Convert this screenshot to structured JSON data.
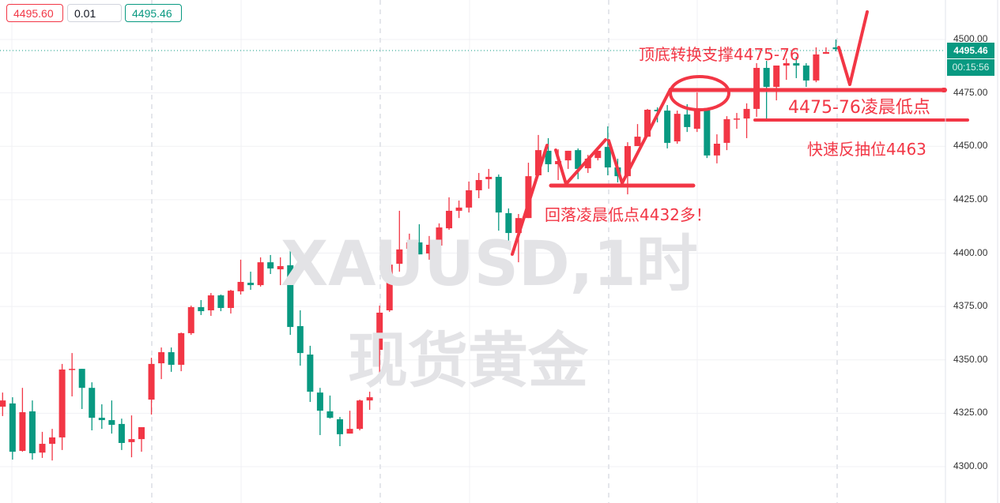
{
  "symbol_watermark": "XAUUSD,1时",
  "name_watermark": "现货黄金",
  "order_panel": {
    "sell_price": "4495.60",
    "quantity": "0.01",
    "buy_price": "4495.46"
  },
  "last_price_label": "4495.46",
  "countdown": "00:15:56",
  "annotations": {
    "support_flip": "顶底转换支撑4475-76",
    "early_low": "4475-76凌晨低点",
    "rebound_level": "快速反抽位4463",
    "pullback_long": "回落凌晨低点4432多！"
  },
  "colors": {
    "up": "#f23645",
    "down": "#089981",
    "annotation": "#f23645",
    "last_price": "#089981"
  },
  "chart_data": {
    "type": "candlestick",
    "title": "",
    "y_ticks": [
      "4500.00",
      "4475.00",
      "4450.00",
      "4425.00",
      "4400.00",
      "4375.00",
      "4350.00",
      "4325.00",
      "4300.00"
    ],
    "ylim": [
      4284,
      4517
    ],
    "grid": true,
    "current_price": 4495.46,
    "annotation_levels": [
      4475.5,
      4463,
      4432
    ],
    "candles_ohlc": [
      [
        4328.1,
        4334.7,
        4323.7,
        4331.0
      ],
      [
        4329.6,
        4332.5,
        4303.3,
        4307.0
      ],
      [
        4307.4,
        4336.9,
        4307.0,
        4325.5
      ],
      [
        4325.9,
        4331.0,
        4303.3,
        4306.3
      ],
      [
        4306.6,
        4316.3,
        4304.1,
        4310.7
      ],
      [
        4310.7,
        4317.7,
        4302.9,
        4313.7
      ],
      [
        4313.7,
        4348.1,
        4307.8,
        4345.5
      ],
      [
        4345.5,
        4353.2,
        4332.9,
        4345.8
      ],
      [
        4345.8,
        4345.8,
        4327.0,
        4336.9
      ],
      [
        4336.9,
        4339.5,
        4317.0,
        4322.9
      ],
      [
        4322.9,
        4329.2,
        4317.7,
        4321.8
      ],
      [
        4321.8,
        4331.0,
        4315.5,
        4319.6
      ],
      [
        4320.0,
        4322.5,
        4307.8,
        4311.1
      ],
      [
        4311.5,
        4324.0,
        4304.4,
        4312.9
      ],
      [
        4312.9,
        4318.5,
        4307.0,
        4318.5
      ],
      [
        4331.4,
        4351.0,
        4324.4,
        4348.1
      ],
      [
        4348.4,
        4355.8,
        4341.0,
        4353.6
      ],
      [
        4353.6,
        4355.8,
        4344.4,
        4347.7
      ],
      [
        4347.7,
        4362.8,
        4344.7,
        4362.5
      ],
      [
        4362.5,
        4375.4,
        4361.7,
        4374.7
      ],
      [
        4374.7,
        4378.0,
        4371.0,
        4372.8
      ],
      [
        4373.2,
        4381.3,
        4370.6,
        4380.2
      ],
      [
        4380.2,
        4380.6,
        4372.8,
        4374.3
      ],
      [
        4374.3,
        4382.8,
        4371.7,
        4382.4
      ],
      [
        4382.1,
        4396.9,
        4380.6,
        4386.5
      ],
      [
        4386.1,
        4391.3,
        4382.8,
        4385.0
      ],
      [
        4385.0,
        4398.0,
        4384.3,
        4395.7
      ],
      [
        4395.7,
        4399.1,
        4390.2,
        4392.8
      ],
      [
        4392.4,
        4398.0,
        4385.0,
        4393.9
      ],
      [
        4394.3,
        4402.0,
        4361.7,
        4365.4
      ],
      [
        4365.8,
        4373.2,
        4347.3,
        4353.2
      ],
      [
        4352.5,
        4356.6,
        4330.3,
        4335.1
      ],
      [
        4334.7,
        4336.9,
        4314.8,
        4326.2
      ],
      [
        4325.9,
        4333.3,
        4322.5,
        4322.9
      ],
      [
        4322.2,
        4323.3,
        4309.6,
        4315.2
      ],
      [
        4315.5,
        4326.2,
        4315.5,
        4317.7
      ],
      [
        4317.7,
        4331.4,
        4317.0,
        4331.0
      ],
      [
        4331.0,
        4335.1,
        4326.6,
        4332.5
      ],
      [
        4354.7,
        4375.4,
        4343.6,
        4372.1
      ],
      [
        4373.2,
        4396.1,
        4372.5,
        4394.6
      ],
      [
        4395.0,
        4419.8,
        4391.3,
        4401.7
      ],
      [
        4402.0,
        4409.1,
        4388.4,
        4405.0
      ],
      [
        4405.0,
        4413.5,
        4399.4,
        4399.4
      ],
      [
        4399.8,
        4408.0,
        4396.9,
        4403.9
      ],
      [
        4403.5,
        4413.9,
        4400.6,
        4412.0
      ],
      [
        4411.6,
        4426.1,
        4410.9,
        4419.8
      ],
      [
        4419.8,
        4424.6,
        4416.4,
        4421.3
      ],
      [
        4421.3,
        4433.5,
        4419.0,
        4429.4
      ],
      [
        4429.4,
        4437.5,
        4425.7,
        4434.2
      ],
      [
        4434.6,
        4439.4,
        4430.1,
        4435.7
      ],
      [
        4435.7,
        4436.8,
        4410.5,
        4419.0
      ],
      [
        4418.7,
        4420.9,
        4405.0,
        4409.4
      ],
      [
        4409.4,
        4418.3,
        4395.7,
        4416.4
      ],
      [
        4416.4,
        4442.3,
        4416.4,
        4436.0
      ],
      [
        4436.4,
        4455.3,
        4436.4,
        4448.2
      ],
      [
        4447.9,
        4453.8,
        4437.9,
        4441.6
      ],
      [
        4441.6,
        4448.6,
        4434.2,
        4443.1
      ],
      [
        4443.4,
        4447.9,
        4439.4,
        4447.9
      ],
      [
        4448.2,
        4449.0,
        4434.6,
        4439.4
      ],
      [
        4439.7,
        4446.0,
        4437.5,
        4444.2
      ],
      [
        4444.5,
        4447.9,
        4443.4,
        4447.9
      ],
      [
        4449.7,
        4459.3,
        4436.4,
        4440.1
      ],
      [
        4440.1,
        4444.2,
        4433.1,
        4436.0
      ],
      [
        4436.0,
        4451.9,
        4427.5,
        4450.1
      ],
      [
        4450.1,
        4460.4,
        4450.1,
        4454.5
      ],
      [
        4454.5,
        4467.5,
        4454.5,
        4467.1
      ],
      [
        4467.1,
        4468.2,
        4461.2,
        4466.4
      ],
      [
        4466.7,
        4469.3,
        4449.0,
        4451.6
      ],
      [
        4452.3,
        4466.7,
        4451.2,
        4465.2
      ],
      [
        4464.9,
        4469.7,
        4456.7,
        4459.0
      ],
      [
        4458.2,
        4475.2,
        4456.7,
        4467.5
      ],
      [
        4467.5,
        4467.5,
        4444.5,
        4445.7
      ],
      [
        4445.7,
        4455.6,
        4442.0,
        4451.2
      ],
      [
        4451.6,
        4464.1,
        4448.2,
        4462.7
      ],
      [
        4462.7,
        4465.6,
        4458.2,
        4463.0
      ],
      [
        4463.0,
        4470.1,
        4453.8,
        4467.5
      ],
      [
        4467.5,
        4488.9,
        4463.8,
        4486.7
      ],
      [
        4486.7,
        4490.0,
        4463.0,
        4477.8
      ],
      [
        4477.8,
        4487.8,
        4471.5,
        4487.8
      ],
      [
        4487.8,
        4491.1,
        4481.1,
        4488.9
      ],
      [
        4488.9,
        4491.9,
        4481.9,
        4487.8
      ],
      [
        4487.8,
        4488.9,
        4477.8,
        4480.8
      ],
      [
        4480.8,
        4496.3,
        4480.0,
        4493.0
      ],
      [
        4493.3,
        4496.3,
        4493.3,
        4494.1
      ],
      [
        4496.3,
        4500.0,
        4494.5,
        4495.46
      ]
    ]
  }
}
